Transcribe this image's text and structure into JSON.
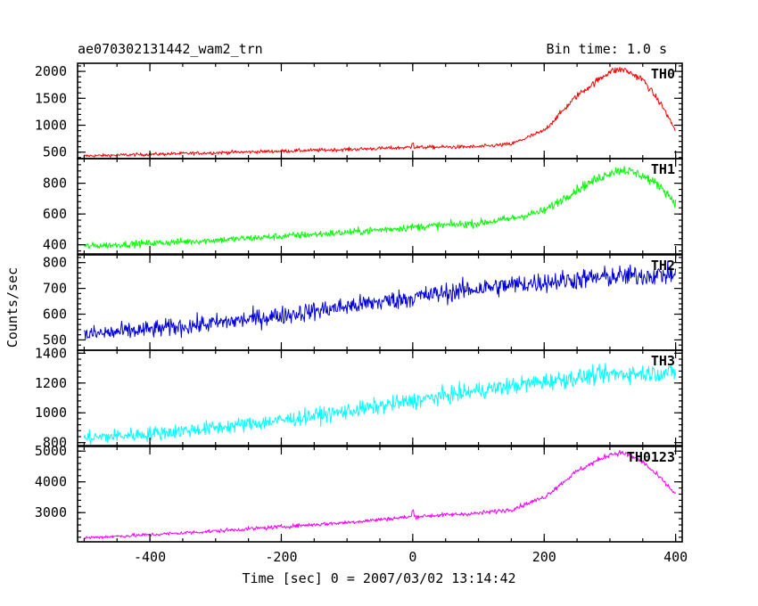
{
  "header": {
    "title": "ae070302131442_wam2_trn",
    "bin_time": "Bin time: 1.0 s"
  },
  "chart_data": {
    "type": "line",
    "xlabel": "Time [sec] 0 = 2007/03/02 13:14:42",
    "ylabel": "Counts/sec",
    "xlim": [
      -510,
      410
    ],
    "xticks": [
      -400,
      -200,
      0,
      200,
      400
    ],
    "panels": [
      {
        "name": "TH0",
        "color": "#ff0000",
        "ylim": [
          380,
          2150
        ],
        "yticks": [
          500,
          1000,
          1500,
          2000
        ],
        "noise": 25,
        "x": [
          -500,
          -400,
          -300,
          -200,
          -100,
          0,
          100,
          150,
          200,
          250,
          300,
          320,
          350,
          380,
          400
        ],
        "y": [
          430,
          460,
          490,
          520,
          550,
          590,
          600,
          650,
          900,
          1550,
          2000,
          2040,
          1850,
          1350,
          900
        ]
      },
      {
        "name": "TH1",
        "color": "#00ff00",
        "ylim": [
          340,
          960
        ],
        "yticks": [
          400,
          600,
          800
        ],
        "noise": 18,
        "x": [
          -500,
          -400,
          -300,
          -200,
          -100,
          0,
          100,
          150,
          200,
          250,
          300,
          320,
          350,
          380,
          400
        ],
        "y": [
          390,
          410,
          430,
          455,
          480,
          515,
          540,
          570,
          620,
          760,
          870,
          890,
          850,
          770,
          670
        ]
      },
      {
        "name": "TH2",
        "color": "#0000dd",
        "ylim": [
          460,
          830
        ],
        "yticks": [
          500,
          600,
          700,
          800
        ],
        "noise": 28,
        "x": [
          -500,
          -400,
          -300,
          -200,
          -100,
          0,
          100,
          200,
          300,
          400
        ],
        "y": [
          520,
          540,
          565,
          595,
          630,
          665,
          700,
          725,
          745,
          755
        ]
      },
      {
        "name": "TH3",
        "color": "#00ffff",
        "ylim": [
          780,
          1420
        ],
        "yticks": [
          800,
          1000,
          1200,
          1400
        ],
        "noise": 40,
        "x": [
          -500,
          -400,
          -300,
          -200,
          -100,
          0,
          100,
          200,
          300,
          400
        ],
        "y": [
          830,
          860,
          900,
          950,
          1010,
          1080,
          1150,
          1210,
          1260,
          1270
        ]
      },
      {
        "name": "TH0123",
        "color": "#ff00ff",
        "ylim": [
          2050,
          5150
        ],
        "yticks": [
          3000,
          4000,
          5000
        ],
        "noise": 50,
        "x": [
          -500,
          -400,
          -300,
          -200,
          -100,
          0,
          100,
          150,
          200,
          250,
          300,
          320,
          350,
          380,
          400
        ],
        "y": [
          2180,
          2280,
          2400,
          2540,
          2680,
          2870,
          2980,
          3100,
          3500,
          4350,
          4900,
          4950,
          4650,
          4050,
          3600
        ]
      }
    ]
  }
}
